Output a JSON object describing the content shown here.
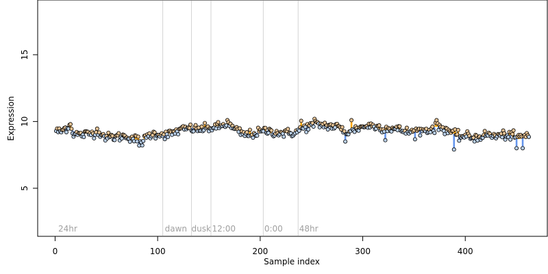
{
  "chart_data": {
    "type": "scatter",
    "title": "",
    "xlabel": "Sample index",
    "ylabel": "Expression",
    "xlim": [
      -17,
      480
    ],
    "ylim": [
      1.4,
      19.1
    ],
    "x_ticks": [
      0,
      100,
      200,
      300,
      400
    ],
    "y_ticks": [
      5,
      10,
      15
    ],
    "grid": false,
    "legend": "none",
    "vlines": [
      105,
      133,
      152,
      203,
      237
    ],
    "annotations": [
      {
        "x": 3,
        "label": "24hr"
      },
      {
        "x": 107,
        "label": "dawn"
      },
      {
        "x": 133,
        "label": "dusk"
      },
      {
        "x": 153,
        "label": "12:00"
      },
      {
        "x": 204,
        "label": "0:00"
      },
      {
        "x": 238,
        "label": "48hr"
      }
    ],
    "anchors": [
      [
        1,
        9.35
      ],
      [
        5,
        9.2
      ],
      [
        10,
        9.5
      ],
      [
        14,
        9.7
      ],
      [
        18,
        9.1
      ],
      [
        25,
        9.0
      ],
      [
        35,
        9.1
      ],
      [
        42,
        9.3
      ],
      [
        50,
        8.8
      ],
      [
        60,
        8.85
      ],
      [
        70,
        8.9
      ],
      [
        78,
        8.7
      ],
      [
        85,
        8.5
      ],
      [
        92,
        9.0
      ],
      [
        100,
        9.1
      ],
      [
        110,
        9.0
      ],
      [
        120,
        9.3
      ],
      [
        130,
        9.5
      ],
      [
        140,
        9.4
      ],
      [
        150,
        9.5
      ],
      [
        160,
        9.6
      ],
      [
        168,
        9.8
      ],
      [
        175,
        9.4
      ],
      [
        185,
        9.0
      ],
      [
        195,
        9.1
      ],
      [
        205,
        9.3
      ],
      [
        215,
        9.2
      ],
      [
        225,
        9.1
      ],
      [
        235,
        9.2
      ],
      [
        245,
        9.6
      ],
      [
        255,
        9.8
      ],
      [
        265,
        9.7
      ],
      [
        275,
        9.6
      ],
      [
        285,
        9.2
      ],
      [
        295,
        9.5
      ],
      [
        305,
        9.7
      ],
      [
        315,
        9.6
      ],
      [
        325,
        9.5
      ],
      [
        335,
        9.4
      ],
      [
        345,
        9.2
      ],
      [
        355,
        9.3
      ],
      [
        365,
        9.4
      ],
      [
        375,
        9.6
      ],
      [
        385,
        9.3
      ],
      [
        392,
        8.9
      ],
      [
        400,
        8.9
      ],
      [
        410,
        8.8
      ],
      [
        420,
        9.0
      ],
      [
        430,
        8.9
      ],
      [
        440,
        9.0
      ],
      [
        450,
        8.8
      ],
      [
        460,
        9.0
      ]
    ],
    "outliers": [
      [
        15,
        9.8
      ],
      [
        82,
        8.2
      ],
      [
        168,
        10.1
      ],
      [
        240,
        10.05
      ],
      [
        253,
        10.2
      ],
      [
        283,
        8.5
      ],
      [
        289,
        10.1
      ],
      [
        322,
        8.6
      ],
      [
        372,
        10.1
      ],
      [
        389,
        7.9
      ],
      [
        450,
        8.0
      ],
      [
        456,
        8.0
      ]
    ],
    "count": 462,
    "colors": {
      "orange_segment": "#ffa500",
      "blue_segment": "#6495ed",
      "point_fill_high": "#e8c496",
      "point_fill_low": "#b9cfe8",
      "vline": "#d3d3d3",
      "annotation": "#a0a0a0"
    }
  }
}
